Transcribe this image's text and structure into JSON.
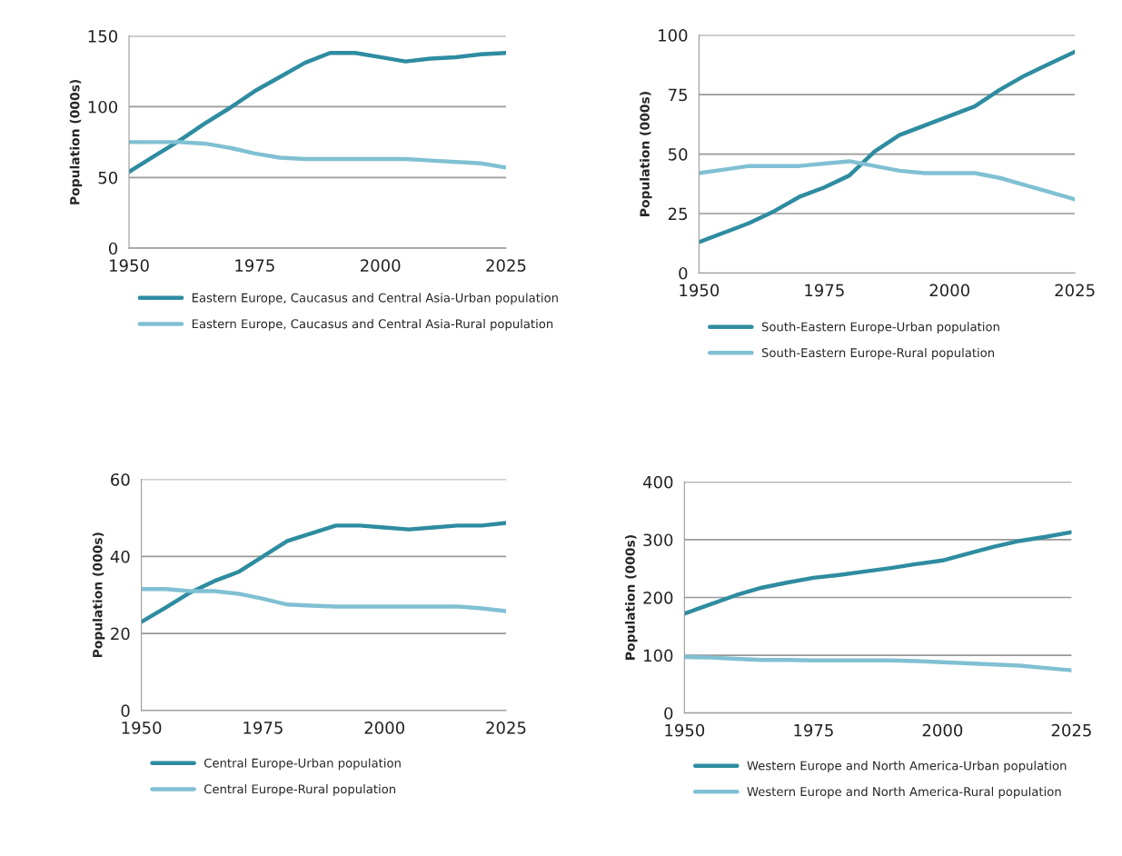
{
  "chart_data": [
    {
      "type": "line",
      "ylabel": "Population (000s)",
      "x": [
        1950,
        1955,
        1960,
        1965,
        1970,
        1975,
        1980,
        1985,
        1990,
        1995,
        2000,
        2005,
        2010,
        2015,
        2020,
        2025
      ],
      "xlim": [
        1950,
        2025
      ],
      "xticks": [
        1950,
        1975,
        2000,
        2025
      ],
      "ylim": [
        0,
        150
      ],
      "yticks": [
        0,
        50,
        100,
        150
      ],
      "grid": "y",
      "legend": "bottom",
      "series": [
        {
          "name": "Eastern Europe, Caucasus and Central Asia-Urban population",
          "color": "#2e8ca0",
          "values": [
            54,
            65,
            76,
            88,
            99,
            111,
            121,
            131,
            138,
            138,
            135,
            132,
            134,
            135,
            137,
            138
          ]
        },
        {
          "name": "Eastern Europe, Caucasus and Central Asia-Rural population",
          "color": "#80c0d3",
          "values": [
            75,
            75,
            75,
            74,
            71,
            67,
            64,
            63,
            63,
            63,
            63,
            63,
            62,
            61,
            60,
            57
          ]
        }
      ]
    },
    {
      "type": "line",
      "ylabel": "Population (000s)",
      "x": [
        1950,
        1955,
        1960,
        1965,
        1970,
        1975,
        1980,
        1985,
        1990,
        1995,
        2000,
        2005,
        2010,
        2015,
        2020,
        2025
      ],
      "xlim": [
        1950,
        2025
      ],
      "xticks": [
        1950,
        1975,
        2000,
        2025
      ],
      "ylim": [
        0,
        100
      ],
      "yticks": [
        0,
        25,
        50,
        75,
        100
      ],
      "grid": "y",
      "legend": "bottom",
      "series": [
        {
          "name": "South-Eastern Europe-Urban population",
          "color": "#2e8ca0",
          "values": [
            13,
            17,
            21,
            26,
            32,
            36,
            41,
            51,
            58,
            62,
            66,
            70,
            77,
            83,
            88,
            93
          ]
        },
        {
          "name": "South-Eastern Europe-Rural population",
          "color": "#80c0d3",
          "values": [
            42,
            43.5,
            45,
            45,
            45,
            46,
            47,
            45,
            43,
            42,
            42,
            42,
            40,
            37,
            34,
            31
          ]
        }
      ]
    },
    {
      "type": "line",
      "ylabel": "Population (000s)",
      "x": [
        1950,
        1955,
        1960,
        1965,
        1970,
        1975,
        1980,
        1985,
        1990,
        1995,
        2000,
        2005,
        2010,
        2015,
        2020,
        2025
      ],
      "xlim": [
        1950,
        2025
      ],
      "xticks": [
        1950,
        1975,
        2000,
        2025
      ],
      "ylim": [
        0,
        60
      ],
      "yticks": [
        0,
        20,
        40,
        60
      ],
      "grid": "y",
      "legend": "bottom",
      "series": [
        {
          "name": "Central Europe-Urban population",
          "color": "#2e8ca0",
          "values": [
            23,
            26.7,
            30.6,
            33.6,
            36,
            40,
            44,
            46,
            48,
            48,
            47.5,
            47,
            47.5,
            48,
            48,
            48.7
          ]
        },
        {
          "name": "Central Europe-Rural population",
          "color": "#80c0d3",
          "values": [
            31.5,
            31.5,
            31,
            31,
            30.3,
            29,
            27.5,
            27.2,
            27,
            27,
            27,
            27,
            27,
            27,
            26.5,
            25.8
          ]
        }
      ]
    },
    {
      "type": "line",
      "ylabel": "Population (000s)",
      "x": [
        1950,
        1955,
        1960,
        1965,
        1970,
        1975,
        1980,
        1985,
        1990,
        1995,
        2000,
        2005,
        2010,
        2015,
        2020,
        2025
      ],
      "xlim": [
        1950,
        2025
      ],
      "xticks": [
        1950,
        1975,
        2000,
        2025
      ],
      "ylim": [
        0,
        400
      ],
      "yticks": [
        0,
        100,
        200,
        300,
        400
      ],
      "grid": "y",
      "legend": "bottom",
      "series": [
        {
          "name": "Western Europe and North America-Urban population",
          "color": "#2e8ca0",
          "values": [
            172,
            188,
            204,
            217,
            226,
            234,
            239,
            245,
            251,
            258,
            264,
            276,
            288,
            298,
            305,
            313
          ]
        },
        {
          "name": "Western Europe and North America-Rural population",
          "color": "#80c0d3",
          "values": [
            97,
            96,
            94,
            92,
            92,
            91,
            91,
            91,
            91,
            90,
            88,
            86,
            84,
            82,
            78,
            74
          ]
        }
      ]
    }
  ]
}
